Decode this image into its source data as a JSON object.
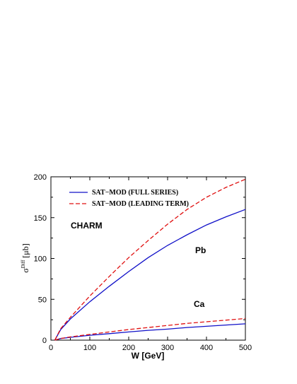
{
  "chart_data": {
    "type": "line",
    "xlabel": "W [GeV]",
    "ylabel": {
      "main": "σ",
      "sup": "Diff",
      "unit": "[μb]"
    },
    "xlim": [
      0,
      500
    ],
    "ylim": [
      0,
      200
    ],
    "xticks": [
      0,
      100,
      200,
      300,
      400,
      500
    ],
    "yticks": [
      0,
      50,
      100,
      150,
      200
    ],
    "grid": false,
    "legend_position": "top-left",
    "annotations": {
      "charm": "CHARM",
      "pb": "Pb",
      "ca": "Ca"
    },
    "colors": {
      "full": "#1010c8",
      "leading": "#e01010"
    },
    "series": [
      {
        "name": "SAT−MOD (FULL SERIES)",
        "nucleus": "Pb",
        "style": "solid",
        "x": [
          10,
          25,
          50,
          100,
          150,
          200,
          250,
          300,
          350,
          400,
          450,
          500
        ],
        "y": [
          0,
          13,
          26,
          47,
          66,
          84,
          101,
          116,
          129,
          141,
          151,
          160
        ]
      },
      {
        "name": "SAT−MOD (LEADING TERM)",
        "nucleus": "Pb",
        "style": "dashed",
        "x": [
          10,
          25,
          50,
          100,
          150,
          200,
          250,
          300,
          350,
          400,
          450,
          500
        ],
        "y": [
          0,
          14,
          28,
          54,
          78,
          101,
          122,
          142,
          160,
          175,
          187,
          197
        ]
      },
      {
        "name": "SAT−MOD (FULL SERIES)",
        "nucleus": "Ca",
        "style": "solid",
        "x": [
          10,
          25,
          50,
          100,
          150,
          200,
          250,
          300,
          350,
          400,
          450,
          500
        ],
        "y": [
          0,
          2,
          3.5,
          6,
          8,
          10,
          12,
          13.5,
          15.5,
          17,
          18.5,
          20
        ]
      },
      {
        "name": "SAT−MOD (LEADING TERM)",
        "nucleus": "Ca",
        "style": "dashed",
        "x": [
          10,
          25,
          50,
          100,
          150,
          200,
          250,
          300,
          350,
          400,
          450,
          500
        ],
        "y": [
          0,
          2,
          4,
          7,
          10,
          13,
          15.5,
          18,
          20.5,
          22.5,
          24.5,
          26.5
        ]
      }
    ]
  }
}
